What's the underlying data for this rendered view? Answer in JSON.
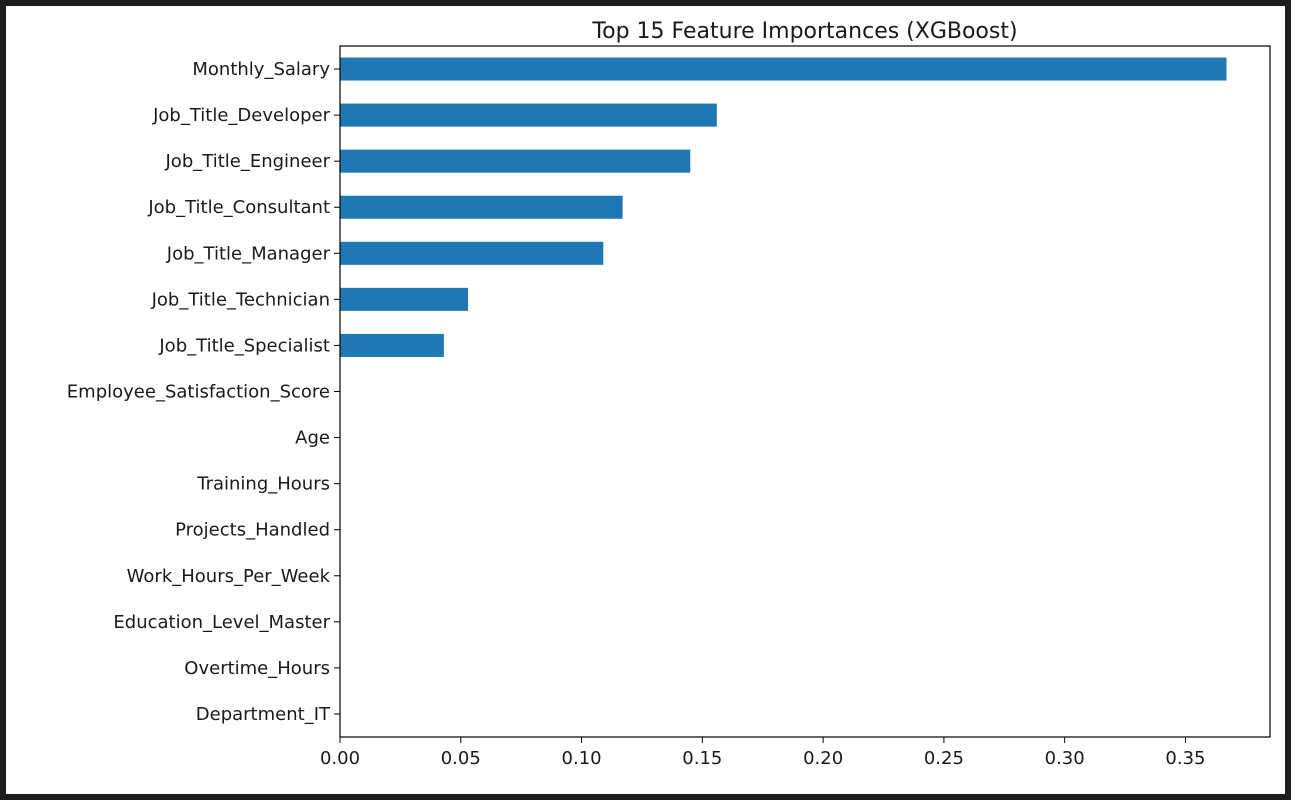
{
  "chart_data": {
    "type": "bar",
    "orientation": "horizontal",
    "title": "Top 15 Feature Importances (XGBoost)",
    "xlabel": "",
    "ylabel": "",
    "categories": [
      "Monthly_Salary",
      "Job_Title_Developer",
      "Job_Title_Engineer",
      "Job_Title_Consultant",
      "Job_Title_Manager",
      "Job_Title_Technician",
      "Job_Title_Specialist",
      "Employee_Satisfaction_Score",
      "Age",
      "Training_Hours",
      "Projects_Handled",
      "Work_Hours_Per_Week",
      "Education_Level_Master",
      "Overtime_Hours",
      "Department_IT"
    ],
    "values": [
      0.367,
      0.156,
      0.145,
      0.117,
      0.109,
      0.053,
      0.043,
      0,
      0,
      0,
      0,
      0,
      0,
      0,
      0
    ],
    "xlim": [
      0,
      0.385
    ],
    "xticks": [
      "0.00",
      "0.05",
      "0.10",
      "0.15",
      "0.20",
      "0.25",
      "0.30",
      "0.35"
    ],
    "bar_color": "#1f77b4",
    "grid": false,
    "legend": "none"
  }
}
